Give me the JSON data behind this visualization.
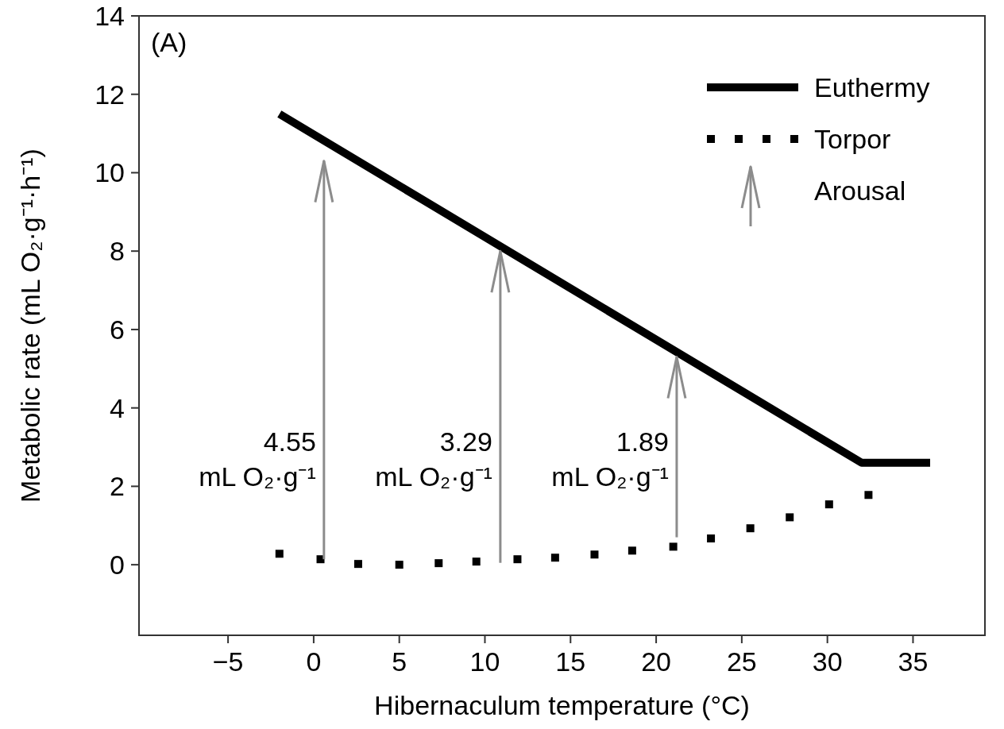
{
  "chart_data": {
    "type": "line",
    "xlabel": "Hibernaculum temperature (°C)",
    "ylabel": "Metabolic rate (mL O₂·g⁻¹·h⁻¹)",
    "xlim": [
      -10.2,
      39.2
    ],
    "ylim": [
      -1.8,
      14
    ],
    "xticks": [
      {
        "value": -5,
        "label": "−5"
      },
      0,
      5,
      10,
      15,
      20,
      25,
      30,
      35
    ],
    "yticks": [
      0,
      2,
      4,
      6,
      8,
      10,
      12,
      14
    ],
    "grid": false,
    "legend": "top right",
    "series": [
      {
        "name": "Euthermy",
        "color": "#000000",
        "line_style": "solid",
        "marker": "none",
        "x": [
          -2,
          32,
          36
        ],
        "values": [
          11.5,
          2.6,
          2.6
        ]
      },
      {
        "name": "Torpor",
        "type": "scatter",
        "color": "#000000",
        "marker": "square",
        "x": [
          -2,
          0.4,
          2.6,
          5,
          7.3,
          9.5,
          11.9,
          14.1,
          16.4,
          18.6,
          21,
          23.2,
          25.5,
          27.8,
          30.1,
          32.4
        ],
        "values": [
          0.28,
          0.14,
          0.02,
          0,
          0.04,
          0.08,
          0.14,
          0.18,
          0.26,
          0.36,
          0.46,
          0.67,
          0.93,
          1.21,
          1.54,
          1.78
        ]
      },
      {
        "name": "Arousal",
        "color": "#8c8c8c",
        "x": [
          0.6,
          0.6
        ],
        "values": [
          0.14,
          10.3
        ]
      },
      {
        "color": "#8c8c8c",
        "x": [
          10.9,
          10.9
        ],
        "values": [
          0.05,
          8.0
        ]
      },
      {
        "color": "#8c8c8c",
        "x": [
          21.2,
          21.2
        ],
        "values": [
          0.7,
          5.3
        ]
      }
    ],
    "annotations": [
      "(A)",
      "4.55\nmL O₂·g⁻¹",
      "3.29\nmL O₂·g⁻¹",
      "1.89\nmL O₂·g⁻¹"
    ]
  }
}
